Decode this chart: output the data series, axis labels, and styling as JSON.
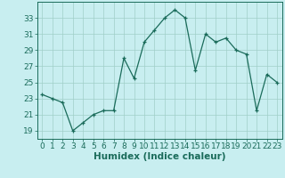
{
  "x": [
    0,
    1,
    2,
    3,
    4,
    5,
    6,
    7,
    8,
    9,
    10,
    11,
    12,
    13,
    14,
    15,
    16,
    17,
    18,
    19,
    20,
    21,
    22,
    23
  ],
  "y": [
    23.5,
    23.0,
    22.5,
    19.0,
    20.0,
    21.0,
    21.5,
    21.5,
    28.0,
    25.5,
    30.0,
    31.5,
    33.0,
    34.0,
    33.0,
    26.5,
    31.0,
    30.0,
    30.5,
    29.0,
    28.5,
    21.5,
    26.0,
    25.0
  ],
  "line_color": "#1a6b5a",
  "marker": "+",
  "marker_size": 3,
  "bg_color": "#c8eef0",
  "grid_color": "#a0cfc8",
  "xlabel": "Humidex (Indice chaleur)",
  "xlim": [
    -0.5,
    23.5
  ],
  "ylim": [
    18.0,
    35.0
  ],
  "yticks": [
    19,
    21,
    23,
    25,
    27,
    29,
    31,
    33
  ],
  "xticks": [
    0,
    1,
    2,
    3,
    4,
    5,
    6,
    7,
    8,
    9,
    10,
    11,
    12,
    13,
    14,
    15,
    16,
    17,
    18,
    19,
    20,
    21,
    22,
    23
  ],
  "xlabel_fontsize": 7.5,
  "tick_label_fontsize": 6.5
}
